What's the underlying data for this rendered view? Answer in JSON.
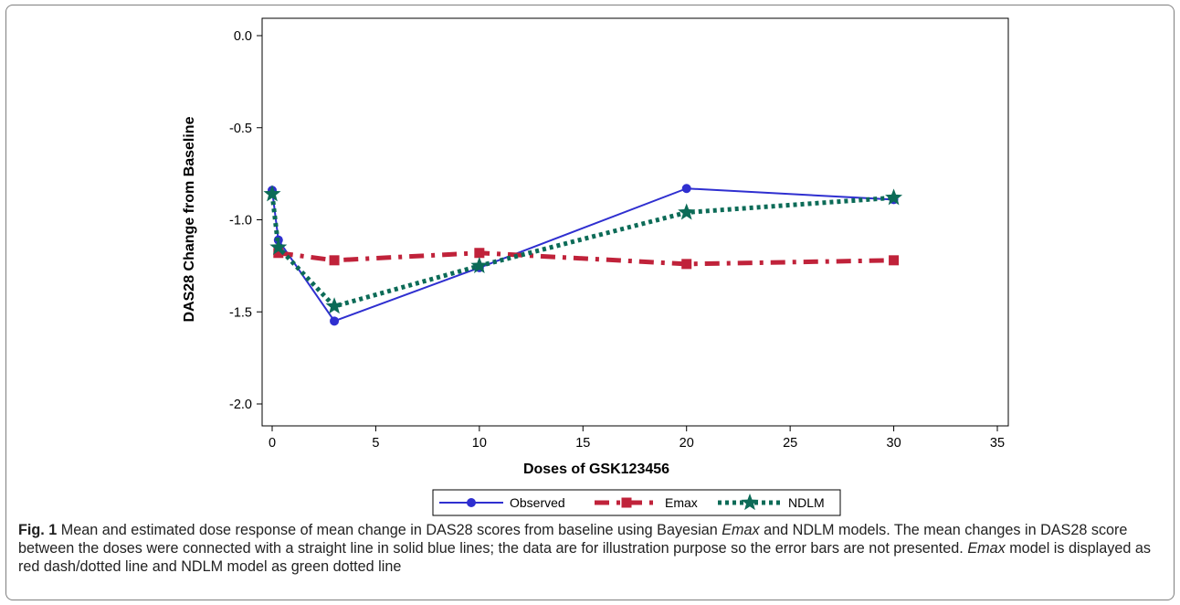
{
  "chart_data": {
    "type": "line",
    "xlabel": "Doses of GSK123456",
    "ylabel": "DAS28 Change from Baseline",
    "xlim": [
      0,
      35
    ],
    "ylim": [
      -2.0,
      0.0
    ],
    "xticks": [
      "0",
      "5",
      "10",
      "15",
      "20",
      "25",
      "30",
      "35"
    ],
    "yticks": [
      "0.0",
      "-0.5",
      "-1.0",
      "-1.5",
      "-2.0"
    ],
    "grid": false,
    "legend_position": "bottom",
    "series": [
      {
        "name": "Observed",
        "color": "#2f2fd0",
        "style": "solid",
        "marker": "circle",
        "points": [
          [
            0,
            -0.84
          ],
          [
            0.3,
            -1.11
          ],
          [
            3,
            -1.55
          ],
          [
            10,
            -1.26
          ],
          [
            20,
            -0.83
          ],
          [
            30,
            -0.89
          ]
        ]
      },
      {
        "name": "Emax",
        "color": "#c0223a",
        "style": "dashdot",
        "marker": "square",
        "points": [
          [
            0.3,
            -1.18
          ],
          [
            3,
            -1.22
          ],
          [
            10,
            -1.18
          ],
          [
            20,
            -1.24
          ],
          [
            30,
            -1.22
          ]
        ]
      },
      {
        "name": "NDLM",
        "color": "#0c6b57",
        "style": "dotted",
        "marker": "star",
        "points": [
          [
            0,
            -0.86
          ],
          [
            0.3,
            -1.15
          ],
          [
            3,
            -1.47
          ],
          [
            10,
            -1.25
          ],
          [
            20,
            -0.96
          ],
          [
            30,
            -0.88
          ]
        ]
      }
    ]
  },
  "caption": {
    "label": "Fig. 1",
    "p1": " Mean and estimated dose response of mean change in DAS28 scores from baseline using Bayesian ",
    "i1": "Emax",
    "p2": " and NDLM models. The mean changes in DAS28 score between the doses were connected with a straight line in solid blue lines; the data are for illustration purpose so the error bars are not presented. ",
    "i2": "Emax",
    "p3": " model is displayed as red dash/dotted line and NDLM model as green dotted line"
  }
}
